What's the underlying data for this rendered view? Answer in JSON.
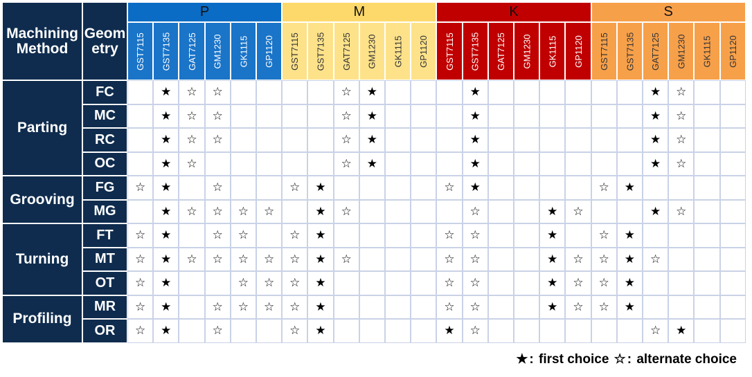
{
  "header": {
    "method_label": "Machining\nMethod",
    "geometry_label": "Geom\netry"
  },
  "groups": [
    {
      "name": "P",
      "color": "#0a6cc4",
      "text_color": "#111111"
    },
    {
      "name": "M",
      "color": "#fdd96b",
      "text_color": "#111111"
    },
    {
      "name": "K",
      "color": "#c00000",
      "text_color": "#111111"
    },
    {
      "name": "S",
      "color": "#f7a04a",
      "text_color": "#111111"
    }
  ],
  "grades": [
    "GST7115",
    "GST7135",
    "GAT7125",
    "GM1230",
    "GK1115",
    "GP1120"
  ],
  "grade_row_colors": [
    "#1a74c8",
    "#fde28a",
    "#c00000",
    "#f7a04a"
  ],
  "grade_text_colors": [
    "#ffffff",
    "#333333",
    "#ffffff",
    "#333333"
  ],
  "methods": [
    {
      "name": "Parting",
      "geometries": [
        "FC",
        "MC",
        "RC",
        "OC"
      ]
    },
    {
      "name": "Grooving",
      "geometries": [
        "FG",
        "MG"
      ]
    },
    {
      "name": "Turning",
      "geometries": [
        "FT",
        "MT",
        "OT"
      ]
    },
    {
      "name": "Profiling",
      "geometries": [
        "MR",
        "OR"
      ]
    }
  ],
  "marks_key": {
    "F": "★",
    "A": "☆",
    "-": ""
  },
  "rows": [
    "-FAA----AF---F------FA---",
    "-FAA----AF---F------FA---",
    "-FAA----AF---F------FA---",
    "-FA-----AF---F------FA---",
    "AF-A--AF----AF----AF-----",
    "-FAAAA-FA----A--FA--FA---",
    "AF-AA-AF----AA--F-AF-----",
    "AFAAAAAFA---AA--FAAFA----",
    "AF--AAAF----AA--FAAF-----",
    "AF-AAAAF----AA--FAAF-----",
    "AF-A--AF----FA------AF---"
  ],
  "legend": {
    "first_symbol": "★",
    "first_text": "first choice",
    "alt_symbol": "☆",
    "alt_text": "alternate choice",
    "separator": ":"
  }
}
